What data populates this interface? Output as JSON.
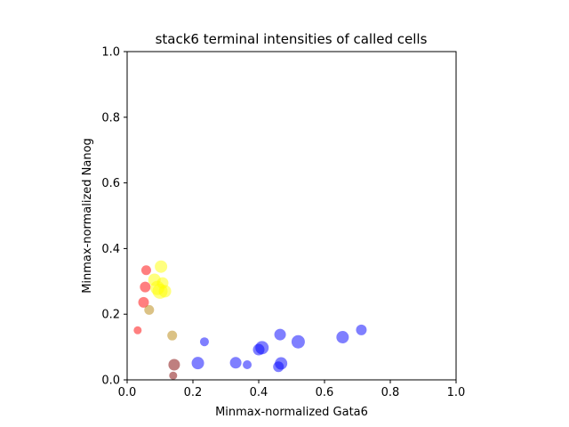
{
  "chart_data": {
    "type": "scatter",
    "title": "stack6 terminal intensities of called cells",
    "xlabel": "Minmax-normalized Gata6",
    "ylabel": "Minmax-normalized Nanog",
    "xlim": [
      0,
      1
    ],
    "ylim": [
      0,
      1
    ],
    "xticks": [
      "0.0",
      "0.2",
      "0.4",
      "0.6",
      "0.8",
      "1.0"
    ],
    "yticks": [
      "0.0",
      "0.2",
      "0.4",
      "0.6",
      "0.8",
      "1.0"
    ],
    "grid": false,
    "legend": "none",
    "series": [
      {
        "color": "#0000ff",
        "points": [
          {
            "x": 0.235,
            "y": 0.116,
            "size": 5
          },
          {
            "x": 0.215,
            "y": 0.051,
            "size": 7
          },
          {
            "x": 0.33,
            "y": 0.052,
            "size": 6.5
          },
          {
            "x": 0.365,
            "y": 0.046,
            "size": 5
          },
          {
            "x": 0.4,
            "y": 0.092,
            "size": 6.5
          },
          {
            "x": 0.41,
            "y": 0.098,
            "size": 7.5
          },
          {
            "x": 0.465,
            "y": 0.138,
            "size": 6.5
          },
          {
            "x": 0.46,
            "y": 0.04,
            "size": 6
          },
          {
            "x": 0.468,
            "y": 0.05,
            "size": 7
          },
          {
            "x": 0.52,
            "y": 0.116,
            "size": 7.5
          },
          {
            "x": 0.655,
            "y": 0.13,
            "size": 7
          },
          {
            "x": 0.712,
            "y": 0.152,
            "size": 6
          }
        ]
      },
      {
        "color": "#ff0000",
        "points": [
          {
            "x": 0.032,
            "y": 0.151,
            "size": 4.5
          },
          {
            "x": 0.05,
            "y": 0.236,
            "size": 6
          },
          {
            "x": 0.055,
            "y": 0.283,
            "size": 6
          },
          {
            "x": 0.058,
            "y": 0.334,
            "size": 5.5
          }
        ]
      },
      {
        "color": "#ffff00",
        "points": [
          {
            "x": 0.083,
            "y": 0.305,
            "size": 7
          },
          {
            "x": 0.092,
            "y": 0.28,
            "size": 8
          },
          {
            "x": 0.1,
            "y": 0.27,
            "size": 8.5
          },
          {
            "x": 0.103,
            "y": 0.345,
            "size": 7
          },
          {
            "x": 0.108,
            "y": 0.295,
            "size": 6.5
          },
          {
            "x": 0.115,
            "y": 0.27,
            "size": 7
          }
        ]
      },
      {
        "color": "#b8860b",
        "points": [
          {
            "x": 0.067,
            "y": 0.213,
            "size": 5.5
          },
          {
            "x": 0.137,
            "y": 0.135,
            "size": 5.5
          }
        ]
      },
      {
        "color": "#800000",
        "points": [
          {
            "x": 0.143,
            "y": 0.046,
            "size": 6.5
          },
          {
            "x": 0.14,
            "y": 0.013,
            "size": 4.5
          }
        ]
      }
    ]
  }
}
